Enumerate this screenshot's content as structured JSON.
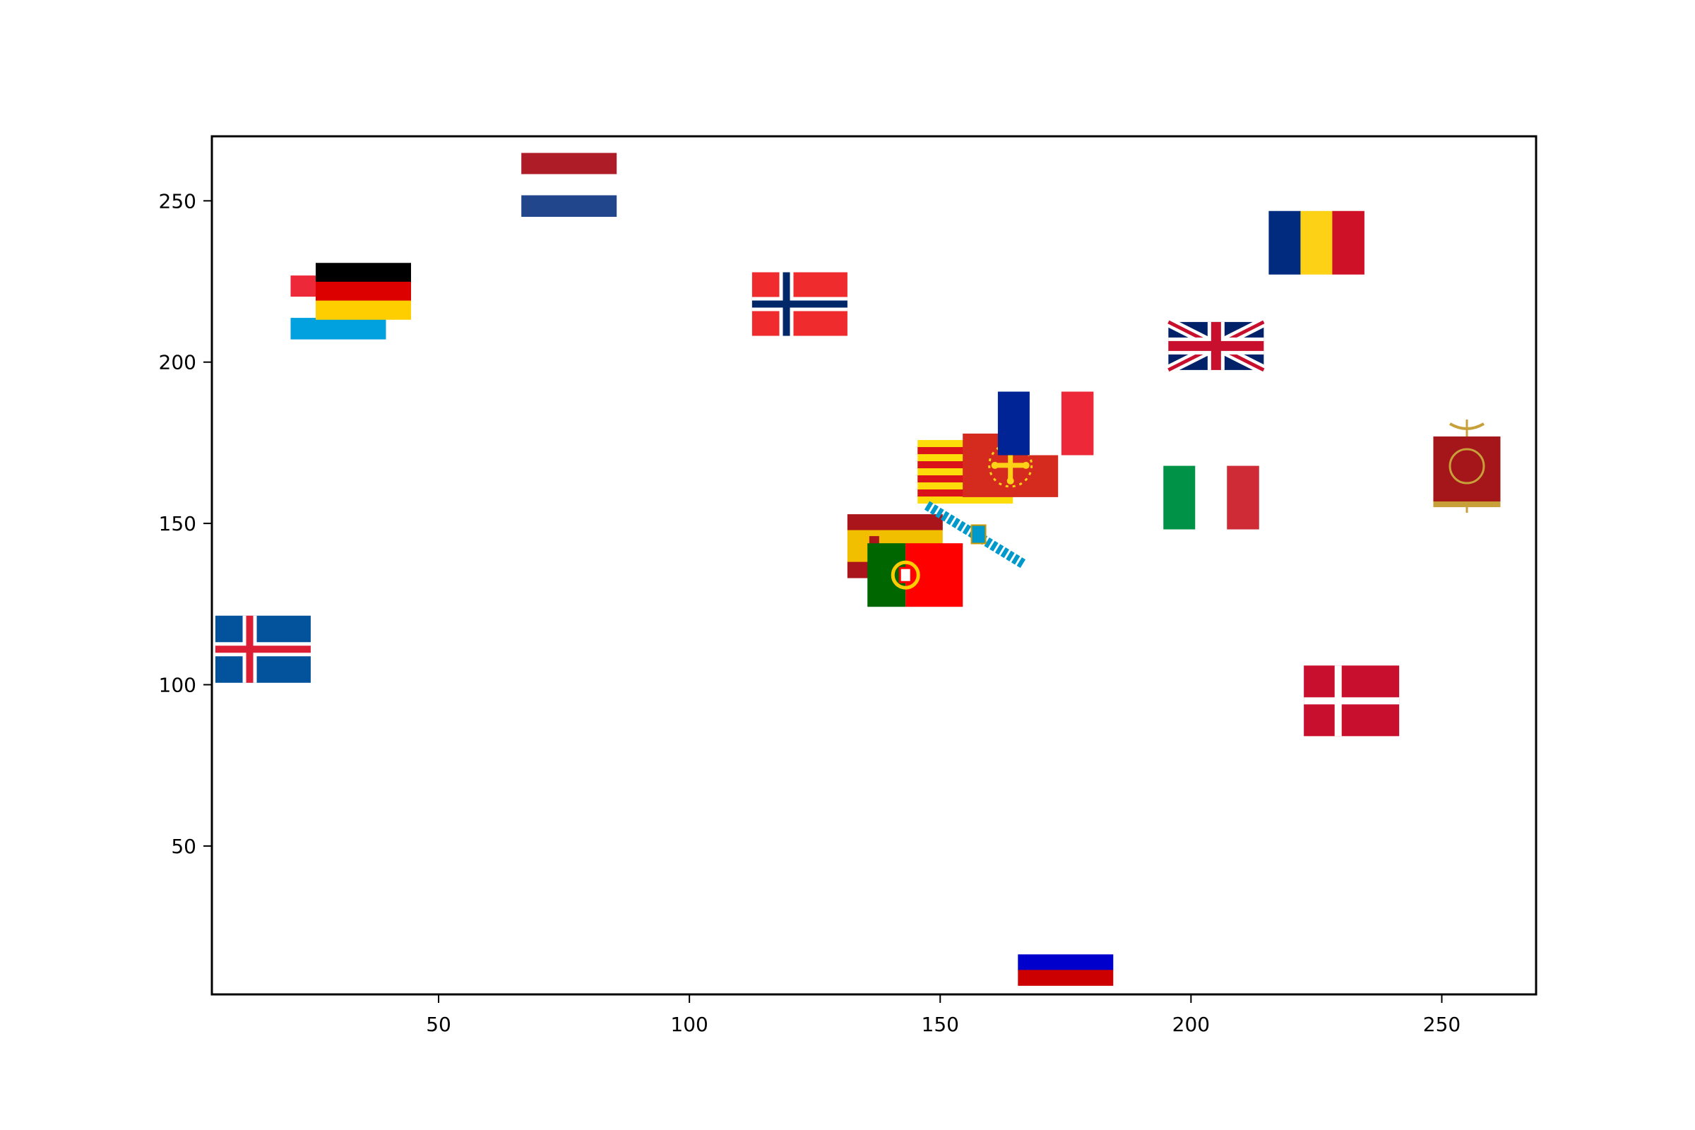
{
  "chart_data": {
    "type": "scatter",
    "title": "",
    "xlabel": "",
    "ylabel": "",
    "xlim": [
      4.8,
      268.8
    ],
    "ylim": [
      4,
      270
    ],
    "xticks": [
      50,
      100,
      150,
      200,
      250
    ],
    "yticks": [
      50,
      100,
      150,
      200,
      250
    ],
    "xtick_labels": [
      "50",
      "100",
      "150",
      "200",
      "250"
    ],
    "ytick_labels": [
      "50",
      "100",
      "150",
      "200",
      "250"
    ],
    "grid": false,
    "marker_style": "flag images",
    "points": [
      {
        "flag": "netherlands-flag",
        "x": 76,
        "y": 255
      },
      {
        "flag": "luxembourg-flag",
        "x": 30,
        "y": 217
      },
      {
        "flag": "germany-flag",
        "x": 35,
        "y": 222
      },
      {
        "flag": "norway-flag",
        "x": 122,
        "y": 218
      },
      {
        "flag": "romania-flag",
        "x": 225,
        "y": 237
      },
      {
        "flag": "united-kingdom-flag",
        "x": 205,
        "y": 205
      },
      {
        "flag": "france-flag",
        "x": 171,
        "y": 181
      },
      {
        "flag": "catalonia-flag",
        "x": 155,
        "y": 166
      },
      {
        "flag": "occitania-flag",
        "x": 164,
        "y": 168
      },
      {
        "flag": "italy-flag",
        "x": 204,
        "y": 158
      },
      {
        "flag": "roman-empire-standard",
        "x": 255,
        "y": 166
      },
      {
        "flag": "spain-flag",
        "x": 141,
        "y": 143
      },
      {
        "flag": "galicia-flag",
        "x": 158,
        "y": 144
      },
      {
        "flag": "portugal-flag",
        "x": 145,
        "y": 134
      },
      {
        "flag": "iceland-flag",
        "x": 15,
        "y": 111
      },
      {
        "flag": "denmark-flag",
        "x": 232,
        "y": 95
      },
      {
        "flag": "russia-flag",
        "x": 175,
        "y": 14
      }
    ]
  },
  "colors": {
    "axes": "#000000",
    "background": "#ffffff",
    "nl_red": "#ae1c28",
    "nl_white": "#ffffff",
    "nl_blue": "#21468b",
    "lu_red": "#ed2939",
    "lu_blue": "#00a1de",
    "de_black": "#000000",
    "de_red": "#dd0000",
    "de_gold": "#ffce00",
    "no_red": "#ef2b2d",
    "no_blue": "#002868",
    "ro_blue": "#002b7f",
    "ro_yellow": "#fcd116",
    "ro_red": "#ce1126",
    "uk_blue": "#012169",
    "uk_red": "#c8102e",
    "fr_blue": "#002395",
    "fr_red": "#ed2939",
    "cat_yellow": "#fcdd09",
    "cat_red": "#da121a",
    "oc_red": "#d52b1e",
    "oc_gold": "#fcd116",
    "it_green": "#009246",
    "it_red": "#ce2b37",
    "rome_red": "#a4161a",
    "rome_gold": "#c8a03a",
    "es_red": "#aa151b",
    "es_yellow": "#f1bf00",
    "gal_blue": "#0099cc",
    "pt_green": "#006600",
    "pt_red": "#ff0000",
    "pt_gold": "#ffcc00",
    "is_blue": "#02529c",
    "is_red": "#dc1e35",
    "dk_red": "#c8102e",
    "ru_blue": "#0000cc",
    "ru_red": "#cc0000"
  }
}
